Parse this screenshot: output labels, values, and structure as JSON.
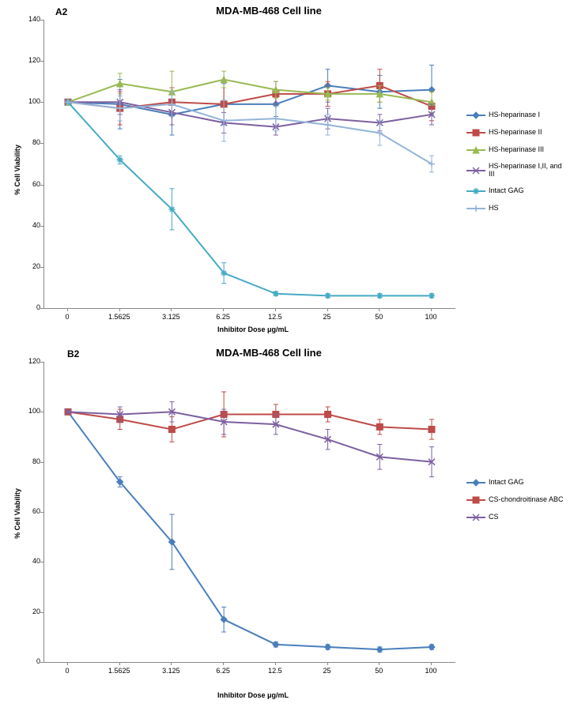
{
  "panelA": {
    "label": "A2",
    "title": "MDA-MB-468 Cell line",
    "y_axis_label": "% Cell Viability",
    "x_axis_label": "Inhibitor Dose μg/mL",
    "ylim": [
      0,
      140
    ],
    "ytick_step": 20,
    "x_categories": [
      "0",
      "1.5625",
      "3.125",
      "6.25",
      "12.5",
      "25",
      "50",
      "100"
    ],
    "plot_bg": "#ffffff",
    "axis_color": "#888888",
    "tick_font_size": 9,
    "title_font_size": 13,
    "series": [
      {
        "name": "HS-heparinase I",
        "color": "#4a7ebb",
        "marker": "diamond",
        "line_width": 2,
        "values": [
          100,
          99,
          94,
          99,
          99,
          108,
          105,
          106
        ],
        "errors": [
          0,
          12,
          10,
          10,
          6,
          8,
          8,
          12
        ]
      },
      {
        "name": "HS-heparinase II",
        "color": "#be4b48",
        "marker": "square",
        "line_width": 2,
        "values": [
          100,
          97,
          100,
          99,
          104,
          104,
          108,
          98
        ],
        "errors": [
          0,
          8,
          7,
          8,
          6,
          6,
          8,
          7
        ]
      },
      {
        "name": "HS-heparinase III",
        "color": "#98b954",
        "marker": "triangle",
        "line_width": 2,
        "values": [
          100,
          109,
          105,
          111,
          106,
          104,
          104,
          100
        ],
        "errors": [
          0,
          5,
          10,
          4,
          4,
          3,
          4,
          5
        ]
      },
      {
        "name": "HS-heparinase I,II, and III",
        "color": "#7d60a0",
        "marker": "x",
        "line_width": 2,
        "values": [
          100,
          100,
          95,
          90,
          88,
          92,
          90,
          94
        ],
        "errors": [
          0,
          6,
          6,
          5,
          4,
          5,
          4,
          5
        ]
      },
      {
        "name": "Intact GAG",
        "color": "#46aac5",
        "marker": "star",
        "line_width": 2,
        "values": [
          100,
          72,
          48,
          17,
          7,
          6,
          6,
          6
        ],
        "errors": [
          0,
          2,
          10,
          5,
          1,
          1,
          1,
          1
        ]
      },
      {
        "name": "HS",
        "color": "#93b4d7",
        "marker": "plus",
        "line_width": 2,
        "values": [
          100,
          97,
          99,
          91,
          92,
          89,
          85,
          70
        ],
        "errors": [
          0,
          6,
          6,
          10,
          6,
          5,
          6,
          4
        ]
      }
    ]
  },
  "panelB": {
    "label": "B2",
    "title": "MDA-MB-468 Cell line",
    "y_axis_label": "% Cell Viability",
    "x_axis_label": "Inhibitor Dose μg/mL",
    "ylim": [
      0,
      120
    ],
    "ytick_step": 20,
    "x_categories": [
      "0",
      "1.5625",
      "3.125",
      "6.25",
      "12.5",
      "25",
      "50",
      "100"
    ],
    "plot_bg": "#ffffff",
    "axis_color": "#888888",
    "tick_font_size": 9,
    "title_font_size": 13,
    "series": [
      {
        "name": "Intact GAG",
        "color": "#4a7ebb",
        "marker": "diamond",
        "line_width": 2,
        "values": [
          100,
          72,
          48,
          17,
          7,
          6,
          5,
          6
        ],
        "errors": [
          0,
          2,
          11,
          5,
          1,
          1,
          1,
          1
        ]
      },
      {
        "name": "CS-chondroitinase ABC",
        "color": "#be4b48",
        "marker": "square",
        "line_width": 2,
        "values": [
          100,
          97,
          93,
          99,
          99,
          99,
          94,
          93
        ],
        "errors": [
          0,
          4,
          5,
          9,
          4,
          3,
          3,
          4
        ]
      },
      {
        "name": "CS",
        "color": "#7d60a0",
        "marker": "x",
        "line_width": 2,
        "values": [
          100,
          99,
          100,
          96,
          95,
          89,
          82,
          80
        ],
        "errors": [
          0,
          3,
          4,
          5,
          4,
          4,
          5,
          6
        ]
      }
    ]
  }
}
